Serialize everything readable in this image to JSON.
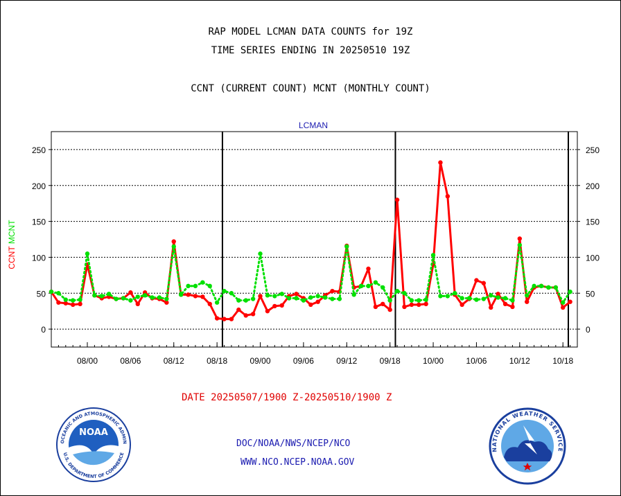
{
  "header": {
    "title_line1": "RAP MODEL LCMAN DATA COUNTS for 19Z",
    "title_line2": "TIME SERIES ENDING IN 20250510 19Z",
    "subtitle": "CCNT (CURRENT COUNT) MCNT (MONTHLY COUNT)"
  },
  "footer": {
    "date_range": "DATE 20250507/1900 Z-20250510/1900 Z",
    "link_org": "DOC/NOAA/NWS/NCEP/NCO",
    "link_url": "WWW.NCO.NCEP.NOAA.GOV"
  },
  "logos": {
    "noaa": {
      "text": "NOAA",
      "ring_text": "NATIONAL OCEANIC AND ATMOSPHERIC ADMINISTRATION",
      "ring_text_bottom": "U.S. DEPARTMENT OF COMMERCE"
    },
    "nws": {
      "ring_text": "NATIONAL WEATHER SERVICE"
    }
  },
  "colors": {
    "ccnt": "#ff0000",
    "mcnt": "#00e000",
    "title": "#000000",
    "label": "#1a1ab0"
  },
  "chart_data": {
    "type": "line",
    "title": "LCMAN",
    "ylim": [
      -25,
      275
    ],
    "y_ticks": [
      0,
      50,
      100,
      150,
      200,
      250
    ],
    "y_tick_labels": [
      "0",
      "50",
      "100",
      "150",
      "200",
      "250"
    ],
    "ylabel_parts": [
      {
        "text": "CCNT",
        "color": "#ff0000"
      },
      {
        "text": "MCNT",
        "color": "#00e000"
      }
    ],
    "xlim": [
      0,
      73
    ],
    "x_tick_labels": [
      {
        "x": 5,
        "label": "08/00"
      },
      {
        "x": 11,
        "label": "08/06"
      },
      {
        "x": 17,
        "label": "08/12"
      },
      {
        "x": 23,
        "label": "08/18"
      },
      {
        "x": 29,
        "label": "09/00"
      },
      {
        "x": 35,
        "label": "09/06"
      },
      {
        "x": 41,
        "label": "09/12"
      },
      {
        "x": 47,
        "label": "09/18"
      },
      {
        "x": 53,
        "label": "10/00"
      },
      {
        "x": 59,
        "label": "10/06"
      },
      {
        "x": 65,
        "label": "10/12"
      },
      {
        "x": 71,
        "label": "10/18"
      }
    ],
    "day_dividers": [
      23.75,
      47.75,
      71.75
    ],
    "grid": true,
    "series": [
      {
        "name": "CCNT",
        "color": "#ff0000",
        "style": "solid",
        "values": [
          52,
          37,
          36,
          34,
          35,
          90,
          47,
          43,
          45,
          42,
          43,
          51,
          35,
          51,
          43,
          42,
          37,
          122,
          48,
          48,
          46,
          45,
          35,
          15,
          14,
          14,
          27,
          19,
          21,
          46,
          25,
          32,
          33,
          46,
          49,
          43,
          34,
          38,
          47,
          53,
          52,
          116,
          58,
          60,
          84,
          31,
          35,
          27,
          180,
          31,
          34,
          34,
          35,
          90,
          232,
          185,
          48,
          34,
          42,
          68,
          64,
          30,
          49,
          35,
          31,
          126,
          38,
          58,
          60,
          58,
          58,
          30,
          38
        ]
      },
      {
        "name": "MCNT",
        "color": "#00e000",
        "style": "dotted",
        "values": [
          52,
          50,
          41,
          40,
          41,
          105,
          47,
          46,
          49,
          42,
          43,
          40,
          45,
          47,
          44,
          44,
          42,
          115,
          48,
          60,
          60,
          65,
          60,
          37,
          53,
          50,
          40,
          40,
          42,
          105,
          47,
          46,
          49,
          43,
          43,
          40,
          44,
          46,
          44,
          42,
          42,
          115,
          48,
          60,
          60,
          65,
          58,
          40,
          53,
          50,
          40,
          40,
          41,
          103,
          46,
          46,
          50,
          43,
          43,
          41,
          42,
          47,
          44,
          43,
          40,
          117,
          47,
          60,
          60,
          58,
          58,
          37,
          52
        ]
      }
    ]
  }
}
